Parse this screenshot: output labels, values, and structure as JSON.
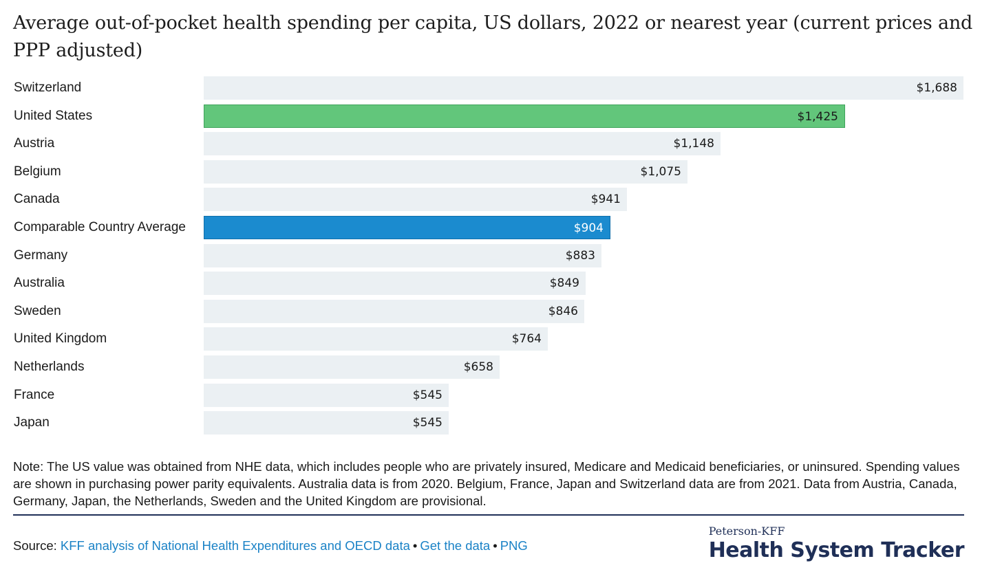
{
  "title": "Average out-of-pocket health spending per capita, US dollars, 2022 or nearest year (current prices and PPP adjusted)",
  "colors": {
    "default_bar": "#ebf0f3",
    "us_bar": "#62c67b",
    "average_bar": "#1b8bcf",
    "link": "#1a82c6",
    "brand": "#1f2f57"
  },
  "chart_data": {
    "type": "bar",
    "orientation": "horizontal",
    "categories": [
      "Switzerland",
      "United States",
      "Austria",
      "Belgium",
      "Canada",
      "Comparable Country Average",
      "Germany",
      "Australia",
      "Sweden",
      "United Kingdom",
      "Netherlands",
      "France",
      "Japan"
    ],
    "values": [
      1688,
      1425,
      1148,
      1075,
      941,
      904,
      883,
      849,
      846,
      764,
      658,
      545,
      545
    ],
    "value_labels": [
      "$1,688",
      "$1,425",
      "$1,148",
      "$1,075",
      "$941",
      "$904",
      "$883",
      "$849",
      "$846",
      "$764",
      "$658",
      "$545",
      "$545"
    ],
    "highlights": {
      "United States": "#62c67b",
      "Comparable Country Average": "#1b8bcf"
    },
    "xlim": [
      0,
      1688
    ],
    "grid": false
  },
  "note": "Note:  The US value was obtained from NHE data, which includes people who are privately insured, Medicare and Medicaid beneficiaries, or uninsured. Spending values are shown in purchasing power parity equivalents. Australia data is from 2020. Belgium, France, Japan and Switzerland data are from 2021. Data from Austria, Canada, Germany, Japan, the Netherlands, Sweden and the United Kingdom are provisional.",
  "source": {
    "label": "Source:",
    "link1": "KFF analysis of National Health Expenditures and OECD data",
    "link2": "Get the data",
    "link3": "PNG",
    "separator": "•"
  },
  "brand": {
    "top": "Peterson-KFF",
    "main": "Health System Tracker"
  }
}
